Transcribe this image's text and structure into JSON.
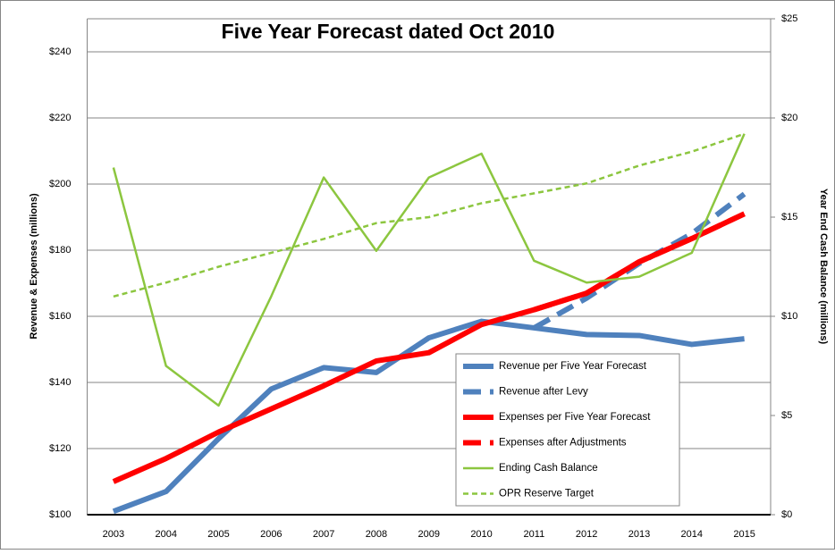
{
  "chart_data": {
    "type": "line",
    "title": "Five Year Forecast dated Oct 2010",
    "y_label": "Revenue & Expenses (millions)",
    "y2_label": "Year End Cash Balance (millions)",
    "categories": [
      "2003",
      "2004",
      "2005",
      "2006",
      "2007",
      "2008",
      "2009",
      "2010",
      "2011",
      "2012",
      "2013",
      "2014",
      "2015"
    ],
    "ylim": [
      100,
      250
    ],
    "yticks": [
      {
        "value": 100,
        "label": "$100"
      },
      {
        "value": 120,
        "label": "$120"
      },
      {
        "value": 140,
        "label": "$140"
      },
      {
        "value": 160,
        "label": "$160"
      },
      {
        "value": 180,
        "label": "$180"
      },
      {
        "value": 200,
        "label": "$200"
      },
      {
        "value": 220,
        "label": "$220"
      },
      {
        "value": 240,
        "label": "$240"
      }
    ],
    "y2lim": [
      0,
      25
    ],
    "y2ticks": [
      {
        "value": 0,
        "label": "$0"
      },
      {
        "value": 5,
        "label": "$5"
      },
      {
        "value": 10,
        "label": "$10"
      },
      {
        "value": 15,
        "label": "$15"
      },
      {
        "value": 20,
        "label": "$20"
      },
      {
        "value": 25,
        "label": "$25"
      }
    ],
    "grid": true,
    "series": [
      {
        "name": "Revenue per Five Year Forecast",
        "color": "#4f81bd",
        "style": "solid",
        "values": [
          101,
          107,
          123,
          138,
          144.5,
          143,
          153.5,
          158.5,
          156.5,
          154.5,
          154.2,
          151.5,
          153.2
        ]
      },
      {
        "name": "Revenue after Levy",
        "color": "#4f81bd",
        "style": "dashed",
        "values": [
          null,
          null,
          null,
          null,
          null,
          null,
          null,
          null,
          156.5,
          165.5,
          176,
          185,
          197
        ]
      },
      {
        "name": "Expenses per Five Year Forecast",
        "color": "#ff0000",
        "style": "solid",
        "values": [
          110,
          117,
          125,
          132,
          139,
          146.5,
          149,
          157.5,
          162,
          167,
          176.5,
          183.5,
          191
        ]
      },
      {
        "name": "Expenses after Adjustments",
        "color": "#ff0000",
        "style": "dashed",
        "values": [
          null,
          null,
          null,
          null,
          null,
          null,
          null,
          null,
          162,
          167,
          176.5,
          183.5,
          191
        ]
      },
      {
        "name": "Ending Cash Balance",
        "color": "#8cc63f",
        "style": "solid",
        "axis": "y2",
        "values": [
          17.5,
          7.5,
          5.5,
          11,
          17,
          13.3,
          17,
          18.2,
          12.8,
          11.7,
          12,
          13.2,
          19.2
        ]
      },
      {
        "name": "OPR Reserve Target",
        "color": "#8cc63f",
        "style": "dashed",
        "axis": "y2",
        "values": [
          11,
          11.7,
          12.5,
          13.2,
          13.9,
          14.7,
          15,
          15.7,
          16.2,
          16.7,
          17.6,
          18.3,
          19.2
        ]
      }
    ]
  }
}
